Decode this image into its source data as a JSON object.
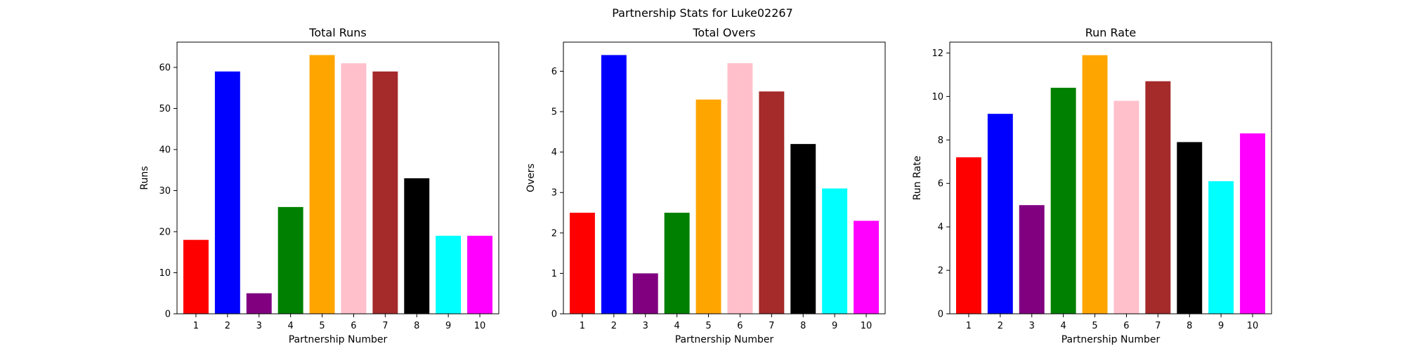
{
  "figure": {
    "suptitle": "Partnership Stats for Luke02267"
  },
  "chart_data": [
    {
      "type": "bar",
      "title": "Total Runs",
      "xlabel": "Partnership Number",
      "ylabel": "Runs",
      "categories": [
        "1",
        "2",
        "3",
        "4",
        "5",
        "6",
        "7",
        "8",
        "9",
        "10"
      ],
      "values": [
        18,
        59,
        5,
        26,
        63,
        61,
        59,
        33,
        19,
        19
      ],
      "ylim": [
        0,
        66.15
      ],
      "yticks": [
        0,
        10,
        20,
        30,
        40,
        50,
        60
      ],
      "colors": [
        "#ff0000",
        "#0000ff",
        "#800080",
        "#008000",
        "#ffa500",
        "#ffc0cb",
        "#a52a2a",
        "#000000",
        "#00ffff",
        "#ff00ff"
      ]
    },
    {
      "type": "bar",
      "title": "Total Overs",
      "xlabel": "Partnership Number",
      "ylabel": "Overs",
      "categories": [
        "1",
        "2",
        "3",
        "4",
        "5",
        "6",
        "7",
        "8",
        "9",
        "10"
      ],
      "values": [
        2.5,
        6.4,
        1.0,
        2.5,
        5.3,
        6.2,
        5.5,
        4.2,
        3.1,
        2.3
      ],
      "ylim": [
        0,
        6.72
      ],
      "yticks": [
        0,
        1,
        2,
        3,
        4,
        5,
        6
      ],
      "colors": [
        "#ff0000",
        "#0000ff",
        "#800080",
        "#008000",
        "#ffa500",
        "#ffc0cb",
        "#a52a2a",
        "#000000",
        "#00ffff",
        "#ff00ff"
      ]
    },
    {
      "type": "bar",
      "title": "Run Rate",
      "xlabel": "Partnership Number",
      "ylabel": "Run Rate",
      "categories": [
        "1",
        "2",
        "3",
        "4",
        "5",
        "6",
        "7",
        "8",
        "9",
        "10"
      ],
      "values": [
        7.2,
        9.2,
        5.0,
        10.4,
        11.9,
        9.8,
        10.7,
        7.9,
        6.1,
        8.3
      ],
      "ylim": [
        0,
        12.5
      ],
      "yticks": [
        0,
        2,
        4,
        6,
        8,
        10,
        12
      ],
      "colors": [
        "#ff0000",
        "#0000ff",
        "#800080",
        "#008000",
        "#ffa500",
        "#ffc0cb",
        "#a52a2a",
        "#000000",
        "#00ffff",
        "#ff00ff"
      ]
    }
  ]
}
